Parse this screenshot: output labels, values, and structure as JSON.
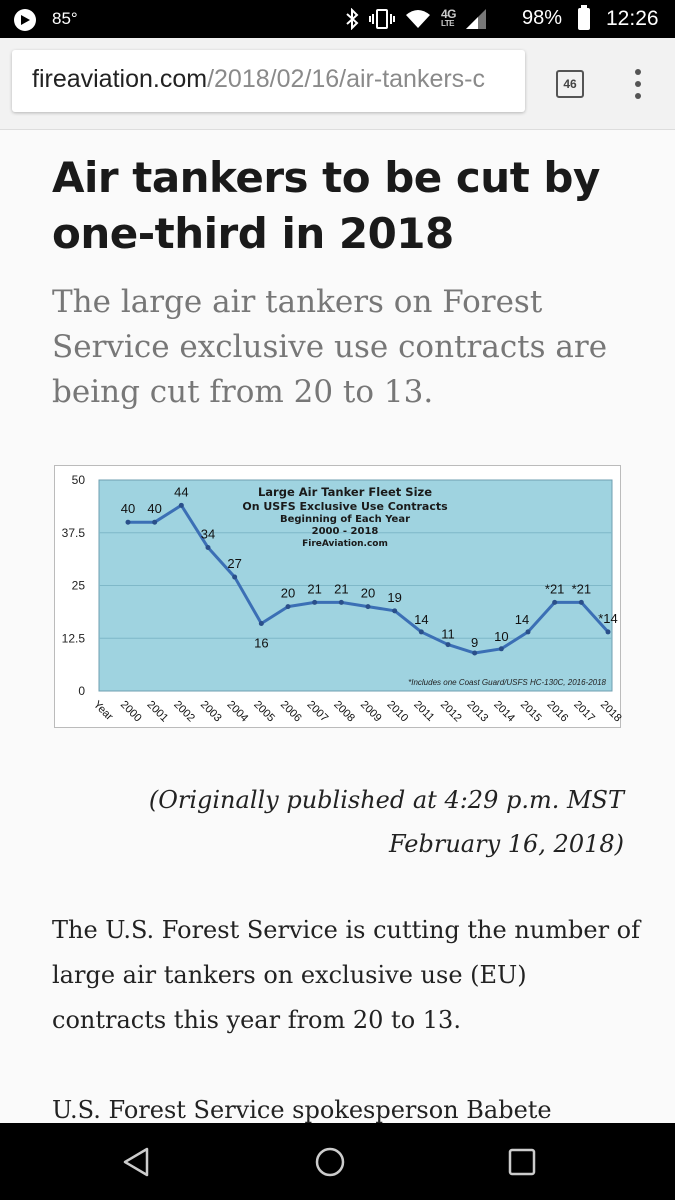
{
  "status_bar": {
    "temperature": "85°",
    "network_label": "4G",
    "network_sub": "LTE",
    "battery": "98%",
    "time": "12:26"
  },
  "browser": {
    "url_domain": "fireaviation.com",
    "url_path": "/2018/02/16/air-tankers-c",
    "tab_count": "46"
  },
  "article": {
    "headline": "Air tankers to be cut by one-third in 2018",
    "subtitle": "The large air tankers on Forest Service exclusive use contracts are being cut from 20 to 13.",
    "published_note": "(Originally published at 4:29 p.m. MST February 16, 2018)",
    "paragraph_1": "The U.S. Forest Service is cutting the number of large air tankers on exclusive use (EU) contracts this year from 20 to 13.",
    "paragraph_2": "U.S. Forest Service spokesperson Babete"
  },
  "chart_data": {
    "type": "line",
    "title_lines": [
      "Large Air Tanker Fleet Size",
      "On USFS Exclusive Use Contracts",
      "Beginning of Each Year",
      "2000 - 2018",
      "FireAviation.com"
    ],
    "xlabel": "Year",
    "x": [
      "2000",
      "2001",
      "2002",
      "2003",
      "2004",
      "2005",
      "2006",
      "2007",
      "2008",
      "2009",
      "2010",
      "2011",
      "2012",
      "2013",
      "2014",
      "2015",
      "2016",
      "2017",
      "2018"
    ],
    "values": [
      40,
      40,
      44,
      34,
      27,
      16,
      20,
      21,
      21,
      20,
      19,
      14,
      11,
      9,
      10,
      14,
      21,
      21,
      14
    ],
    "point_labels": [
      "40",
      "40",
      "44",
      "34",
      "27",
      "16",
      "20",
      "21",
      "21",
      "20",
      "19",
      "14",
      "11",
      "9",
      "10",
      "14",
      "*21",
      "*21",
      "*14"
    ],
    "yticks": [
      "0",
      "12.5",
      "25",
      "37.5",
      "50"
    ],
    "ylim": [
      0,
      50
    ],
    "footnote": "*Includes one Coast Guard/USFS HC-130C, 2016-2018",
    "colors": {
      "plot_bg": "#9fd3e0",
      "line": "#3b6fb5",
      "grid": "#7fb8c8"
    }
  }
}
